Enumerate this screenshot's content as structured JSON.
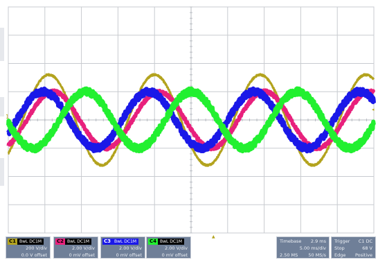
{
  "chart_data": {
    "type": "line",
    "title": "",
    "xlabel": "",
    "ylabel": "",
    "grid": true,
    "divisions": {
      "x": 10,
      "y": 8
    },
    "xlim_div": [
      0,
      10
    ],
    "ylim_div": [
      -4,
      4
    ],
    "series": [
      {
        "channel": "C1",
        "color": "#b3a31e",
        "amplitude_div": 1.6,
        "peak_x_div": [
          4.0,
          6.89,
          9.78
        ],
        "noise_div": 0.03,
        "thickness": 3
      },
      {
        "channel": "C2",
        "color": "#e8207c",
        "amplitude_div": 1.0,
        "peak_x_div": [
          1.23,
          4.12,
          7.01,
          9.9
        ],
        "noise_div": 0.06,
        "thickness": 5
      },
      {
        "channel": "C3",
        "color": "#1a18e8",
        "amplitude_div": 1.0,
        "peak_x_div": [
          0.95,
          3.28,
          6.17,
          9.06
        ],
        "noise_div": 0.12,
        "thickness": 6
      },
      {
        "channel": "C4",
        "color": "#22f030",
        "amplitude_div": 1.0,
        "peak_x_div": [
          2.12,
          5.01,
          7.9
        ],
        "noise_div": 0.12,
        "thickness": 6
      }
    ]
  },
  "channels": [
    {
      "label": "C1",
      "color": "#b3a31e",
      "text_color": "#000000",
      "coupling": "BwL DC1M",
      "scale": "200 V/div",
      "offset": "0.0 V offset"
    },
    {
      "label": "C2",
      "color": "#e8207c",
      "text_color": "#000000",
      "coupling": "BwL DC1M",
      "scale": "2.00 V/div",
      "offset": "0 mV offset"
    },
    {
      "label": "C3",
      "color": "#1a18e8",
      "text_color": "#ffffff",
      "coupling": "BwL DC1M",
      "scale": "2.00 V/div",
      "offset": "0 mV offset"
    },
    {
      "label": "C4",
      "color": "#22f030",
      "text_color": "#000000",
      "coupling": "BwL DC1M",
      "scale": "2.00 V/div",
      "offset": "0 mV offset"
    }
  ],
  "timebase": {
    "label": "Timebase",
    "delay": "2.9 ms",
    "per_div": "5.00 ms/div",
    "samples": "2.50 MS",
    "rate": "50 MS/s"
  },
  "trigger": {
    "label": "Trigger",
    "channel": "C1 DC",
    "mode": "Stop",
    "level": "68 V",
    "type": "Edge",
    "slope": "Positive"
  },
  "markers": {
    "ground": "1",
    "trigger_level": "◂",
    "trigger_time": "▲"
  },
  "colors": {
    "grid": "#c8cbd0",
    "axis": "#b7bbc2",
    "background": "#ffffff",
    "panel": "#6f7f98"
  }
}
